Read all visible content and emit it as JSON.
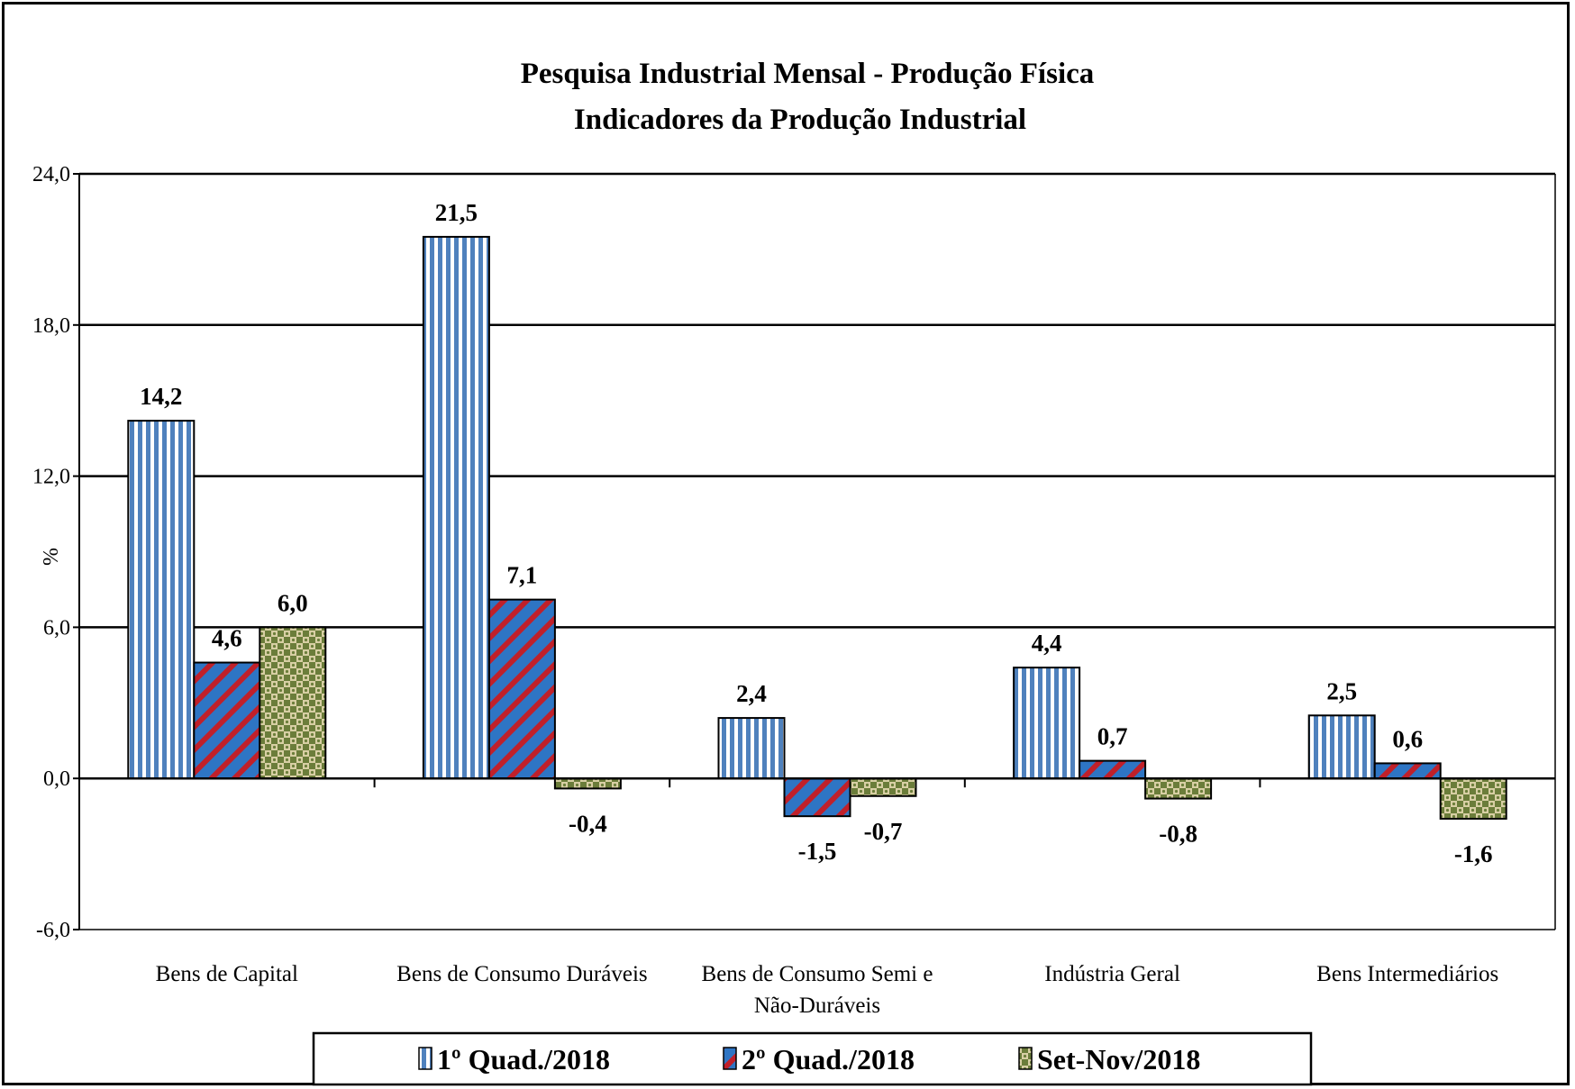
{
  "chart_data": {
    "type": "bar",
    "title": "Pesquisa Industrial Mensal - Produção Física",
    "subtitle": "Indicadores da Produção Industrial",
    "ylabel": "%",
    "xlabel": "",
    "ylim": [
      -6.0,
      24.0
    ],
    "yticks": [
      "24,0",
      "18,0",
      "12,0",
      "6,0",
      "0,0",
      "-6,0"
    ],
    "ytick_values": [
      24,
      18,
      12,
      6,
      0,
      -6
    ],
    "grid": true,
    "legend_position": "bottom",
    "categories": [
      [
        "Bens de Capital"
      ],
      [
        "Bens de Consumo Duráveis"
      ],
      [
        "Bens de Consumo Semi e",
        "Não-Duráveis"
      ],
      [
        "Indústria Geral"
      ],
      [
        "Bens Intermediários"
      ]
    ],
    "series": [
      {
        "name": "1º Quad./2018",
        "values": [
          14.2,
          21.5,
          2.4,
          4.4,
          2.5
        ],
        "labels": [
          "14,2",
          "21,5",
          "2,4",
          "4,4",
          "2,5"
        ],
        "pattern": "vertical-stripes",
        "color": "#4f81bd"
      },
      {
        "name": "2º Quad./2018",
        "values": [
          4.6,
          7.1,
          -1.5,
          0.7,
          0.6
        ],
        "labels": [
          "4,6",
          "7,1",
          "-1,5",
          "0,7",
          "0,6"
        ],
        "pattern": "diagonal-stripes",
        "color": "#2e75c4",
        "color2": "#c0202a"
      },
      {
        "name": "Set-Nov/2018",
        "values": [
          6.0,
          -0.4,
          -0.7,
          -0.8,
          -1.6
        ],
        "labels": [
          "6,0",
          "-0,4",
          "-0,7",
          "-0,8",
          "-1,6"
        ],
        "pattern": "checker",
        "color": "#6b7d3a",
        "color2": "#d8cfa4"
      }
    ]
  }
}
